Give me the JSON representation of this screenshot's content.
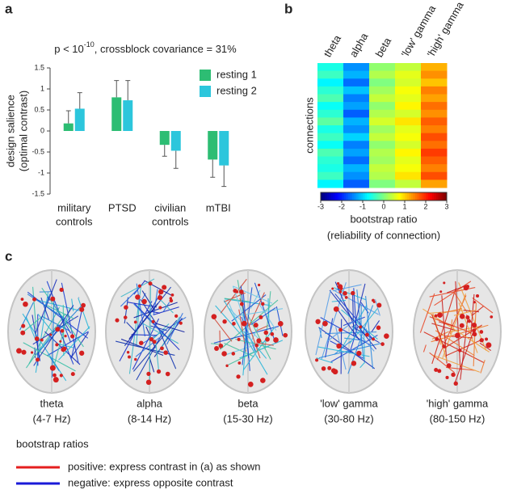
{
  "panels": {
    "a": "a",
    "b": "b",
    "c": "c"
  },
  "chart_data": [
    {
      "type": "bar",
      "title": {
        "base": "p < 10",
        "superscript": "-10",
        "rest": ", crossblock covariance = 31%"
      },
      "y_label": [
        "design salience",
        "(optimal contrast)"
      ],
      "categories": [
        [
          "military",
          "controls"
        ],
        [
          "PTSD"
        ],
        [
          "civilian",
          "controls"
        ],
        [
          "mTBI"
        ]
      ],
      "series": [
        {
          "name": "resting 1",
          "color": "#2dbd73",
          "values": [
            0.18,
            0.8,
            -0.33,
            -0.68
          ],
          "errors": [
            0.3,
            0.4,
            0.27,
            0.42
          ]
        },
        {
          "name": "resting 2",
          "color": "#2cc6dc",
          "values": [
            0.53,
            0.73,
            -0.47,
            -0.82
          ],
          "errors": [
            0.38,
            0.47,
            0.42,
            0.5
          ]
        }
      ],
      "ylim": [
        -1.5,
        1.5
      ],
      "yticks": [
        -1.5,
        -1,
        -0.5,
        0,
        0.5,
        1,
        1.5
      ]
    },
    {
      "type": "heatmap",
      "columns": [
        "theta",
        "alpha",
        "beta",
        "'low' gamma",
        "'high' gamma"
      ],
      "y_label": "connections",
      "colormap": "jet",
      "zlim": [
        -3,
        3
      ],
      "zticks": [
        -3,
        -2,
        -1,
        0,
        1,
        2,
        3
      ],
      "colorbar_label": [
        "bootstrap ratio",
        "(reliability of connection)"
      ],
      "rows": [
        [
          -0.6,
          -1.4,
          0.1,
          0.4,
          1.2
        ],
        [
          -0.4,
          -1.2,
          0.3,
          0.6,
          1.4
        ],
        [
          -0.8,
          -1.6,
          0.0,
          0.5,
          1.1
        ],
        [
          -0.5,
          -1.1,
          0.2,
          0.7,
          1.5
        ],
        [
          -0.3,
          -1.5,
          0.4,
          0.6,
          1.3
        ],
        [
          -0.7,
          -1.3,
          0.1,
          0.8,
          1.6
        ],
        [
          -0.5,
          -1.7,
          0.3,
          0.5,
          1.4
        ],
        [
          -0.2,
          -1.2,
          0.5,
          0.9,
          1.7
        ],
        [
          -0.6,
          -1.4,
          0.2,
          0.6,
          1.5
        ],
        [
          -0.4,
          -1.0,
          0.4,
          0.7,
          1.8
        ],
        [
          -0.7,
          -1.5,
          0.1,
          0.5,
          1.6
        ],
        [
          -0.3,
          -1.3,
          0.3,
          0.8,
          1.9
        ],
        [
          -0.5,
          -1.6,
          0.2,
          0.6,
          1.7
        ],
        [
          -0.6,
          -1.2,
          0.4,
          0.7,
          1.5
        ],
        [
          -0.4,
          -1.4,
          0.3,
          0.9,
          1.8
        ],
        [
          -0.8,
          -1.7,
          0.0,
          0.4,
          1.3
        ]
      ]
    }
  ],
  "brains": [
    {
      "label": "theta",
      "range": "(4-7 Hz)",
      "edge_colors": [
        "#1a3fd1",
        "#2bb6d9",
        "#1e7fd8",
        "#3cc0a8",
        "#1a2fb8"
      ]
    },
    {
      "label": "alpha",
      "range": "(8-14 Hz)",
      "edge_colors": [
        "#1a2fc8",
        "#1436b0",
        "#2a6fe0",
        "#3bb6c8",
        "#1020a0"
      ]
    },
    {
      "label": "beta",
      "range": "(15-30 Hz)",
      "edge_colors": [
        "#2bb6d9",
        "#d24a3a",
        "#47c0a0",
        "#1a4fd1",
        "#6fc7e8"
      ]
    },
    {
      "label": "'low' gamma",
      "range": "(30-80 Hz)",
      "edge_colors": [
        "#1a3fd1",
        "#2a8ae0",
        "#2bb6d9",
        "#1a2fb8",
        "#5aa0e8"
      ]
    },
    {
      "label": "'high' gamma",
      "range": "(80-150 Hz)",
      "edge_colors": [
        "#e84a2a",
        "#f07a30",
        "#d62a1a",
        "#f0a040",
        "#c81e1e"
      ]
    }
  ],
  "legend": {
    "title": "bootstrap ratios",
    "items": [
      {
        "color": "#e41e1e",
        "text": "positive: express contrast in (a) as shown"
      },
      {
        "color": "#1a1ad8",
        "text": "negative: express opposite contrast"
      }
    ]
  }
}
